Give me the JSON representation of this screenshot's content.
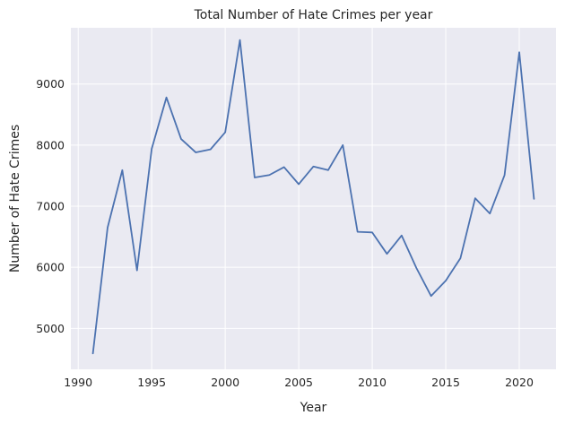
{
  "chart_data": {
    "type": "line",
    "title": "Total Number of Hate Crimes per year",
    "xlabel": "Year",
    "ylabel": "Number of Hate Crimes",
    "xlim": [
      1989.5,
      2022.5
    ],
    "ylim": [
      4330,
      9920
    ],
    "xticks": [
      1990,
      1995,
      2000,
      2005,
      2010,
      2015,
      2020
    ],
    "yticks": [
      5000,
      6000,
      7000,
      8000,
      9000
    ],
    "grid": true,
    "legend": "none",
    "background_color": "#eaeaf2",
    "grid_color": "#ffffff",
    "line_color": "#4c72b0",
    "series": [
      {
        "x": [
          1991,
          1992,
          1993,
          1994,
          1995,
          1996,
          1997,
          1998,
          1999,
          2000,
          2001,
          2002,
          2003,
          2004,
          2005,
          2006,
          2007,
          2008,
          2009,
          2010,
          2011,
          2012,
          2013,
          2014,
          2015,
          2016,
          2017,
          2018,
          2019,
          2020,
          2021
        ],
        "values": [
          4590,
          6650,
          7590,
          5950,
          7940,
          8780,
          8100,
          7880,
          7930,
          8210,
          9720,
          7470,
          7510,
          7640,
          7360,
          7650,
          7590,
          8000,
          6580,
          6570,
          6220,
          6520,
          5990,
          5530,
          5780,
          6150,
          7130,
          6880,
          7510,
          9520,
          7120
        ]
      }
    ]
  }
}
